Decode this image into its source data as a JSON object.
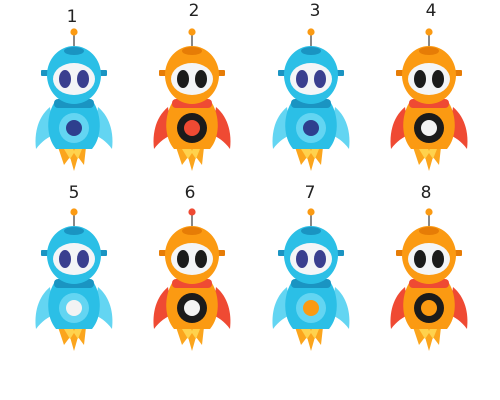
{
  "colors": {
    "blue_body": "#2bbfe6",
    "blue_light": "#63d5f2",
    "blue_dark": "#1a94c2",
    "orange_body": "#fb9a12",
    "orange_dark": "#e67c06",
    "red_accent": "#ef4a33",
    "eye_blue": "#3a3f8f",
    "eye_black": "#1b1b1b",
    "face": "#f4f5f7",
    "flame_outer": "#fba51d",
    "flame_inner": "#ffd24d",
    "antenna_tip_orange": "#fb9a12",
    "antenna_tip_red": "#ef4a33",
    "core_white": "#f3f3f3",
    "core_navy": "#2e3f8e",
    "core_red": "#ef4a33",
    "core_orange": "#fb9a12",
    "ring_black": "#1b1b1b"
  },
  "robots": [
    {
      "number": "1",
      "theme": "blue",
      "antenna": "orange",
      "core": "navy-core",
      "ring": "blue-ring"
    },
    {
      "number": "2",
      "theme": "orange",
      "antenna": "orange",
      "core": "red-core",
      "ring": "black-ring"
    },
    {
      "number": "3",
      "theme": "blue",
      "antenna": "orange",
      "core": "navy-core",
      "ring": "blue-ring"
    },
    {
      "number": "4",
      "theme": "orange",
      "antenna": "orange",
      "core": "white-core",
      "ring": "black-ring"
    },
    {
      "number": "5",
      "theme": "blue",
      "antenna": "orange",
      "core": "white-core",
      "ring": "blue-ring"
    },
    {
      "number": "6",
      "theme": "orange",
      "antenna": "red",
      "core": "white-core",
      "ring": "black-ring"
    },
    {
      "number": "7",
      "theme": "blue",
      "antenna": "orange",
      "core": "orange-core",
      "ring": "blue-ring"
    },
    {
      "number": "8",
      "theme": "orange",
      "antenna": "orange",
      "core": "orange-core",
      "ring": "black-ring"
    }
  ]
}
